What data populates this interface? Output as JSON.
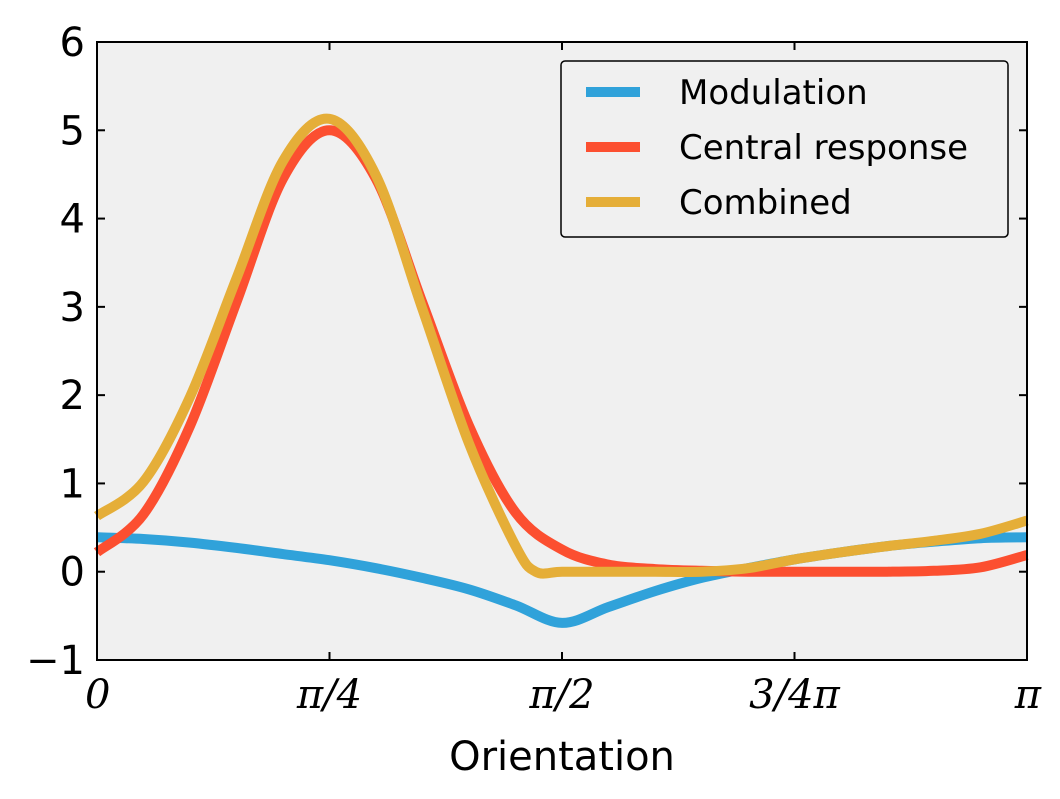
{
  "chart_data": {
    "type": "line",
    "title": "",
    "xlabel": "Orientation",
    "ylabel": "",
    "xlim": [
      0,
      3.14159265
    ],
    "ylim": [
      -1,
      6
    ],
    "x_ticks": [
      {
        "value": 0,
        "label": "0"
      },
      {
        "value": 0.78539816,
        "label": "π/4"
      },
      {
        "value": 1.57079633,
        "label": "π/2"
      },
      {
        "value": 2.35619449,
        "label": "3/4π"
      },
      {
        "value": 3.14159265,
        "label": "π"
      }
    ],
    "y_ticks": [
      {
        "value": -1,
        "label": "−1"
      },
      {
        "value": 0,
        "label": "0"
      },
      {
        "value": 1,
        "label": "1"
      },
      {
        "value": 2,
        "label": "2"
      },
      {
        "value": 3,
        "label": "3"
      },
      {
        "value": 4,
        "label": "4"
      },
      {
        "value": 5,
        "label": "5"
      },
      {
        "value": 6,
        "label": "6"
      }
    ],
    "grid": false,
    "legend_position": "top-right",
    "background": "#f0f0f0",
    "series": [
      {
        "name": "Modulation",
        "color": "#30a2da",
        "x": [
          0,
          0.157,
          0.314,
          0.471,
          0.628,
          0.785,
          0.942,
          1.099,
          1.257,
          1.414,
          1.571,
          1.728,
          1.885,
          2.042,
          2.199,
          2.356,
          2.513,
          2.67,
          2.827,
          2.985,
          3.142
        ],
        "y": [
          0.39,
          0.37,
          0.33,
          0.27,
          0.2,
          0.13,
          0.04,
          -0.07,
          -0.2,
          -0.38,
          -0.58,
          -0.4,
          -0.22,
          -0.07,
          0.04,
          0.14,
          0.22,
          0.29,
          0.34,
          0.38,
          0.39
        ]
      },
      {
        "name": "Central response",
        "color": "#fc4f30",
        "x": [
          0,
          0.157,
          0.314,
          0.471,
          0.628,
          0.785,
          0.942,
          1.099,
          1.257,
          1.414,
          1.571,
          1.728,
          1.885,
          2.042,
          2.199,
          2.356,
          2.513,
          2.67,
          2.827,
          2.985,
          3.142
        ],
        "y": [
          0.22,
          0.65,
          1.65,
          3.05,
          4.45,
          5.0,
          4.45,
          3.05,
          1.65,
          0.67,
          0.25,
          0.08,
          0.03,
          0.01,
          0.0,
          0.0,
          0.0,
          0.0,
          0.01,
          0.05,
          0.19
        ]
      },
      {
        "name": "Combined",
        "color": "#e5ae38",
        "x": [
          0,
          0.157,
          0.314,
          0.471,
          0.628,
          0.785,
          0.942,
          1.099,
          1.257,
          1.414,
          1.482,
          1.571,
          1.728,
          1.885,
          2.042,
          2.199,
          2.356,
          2.513,
          2.67,
          2.827,
          2.985,
          3.142
        ],
        "y": [
          0.63,
          1.02,
          1.98,
          3.32,
          4.65,
          5.13,
          4.49,
          2.98,
          1.45,
          0.29,
          0.0,
          0.0,
          0.0,
          0.0,
          0.0,
          0.04,
          0.14,
          0.22,
          0.29,
          0.35,
          0.43,
          0.58
        ]
      }
    ]
  }
}
